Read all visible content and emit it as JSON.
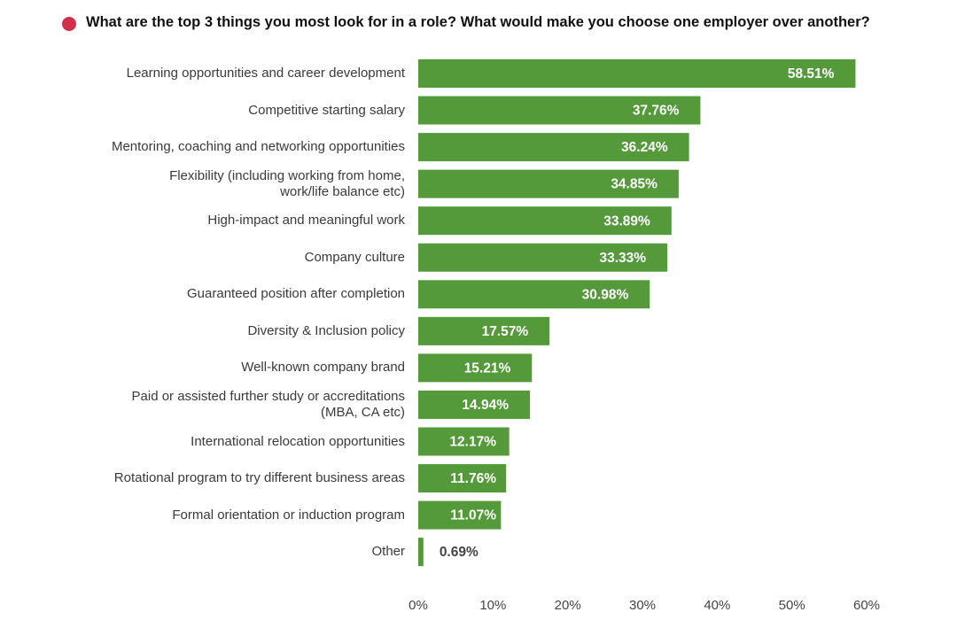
{
  "chart_data": {
    "type": "bar",
    "orientation": "horizontal",
    "title": "What are the top 3 things you most look for in a role? What would make you choose one employer over another?",
    "categories": [
      "Learning opportunities and career development",
      "Competitive starting salary",
      "Mentoring, coaching and networking opportunities",
      "Flexibility (including working from home,\nwork/life balance etc)",
      "High-impact and meaningful work",
      "Company culture",
      "Guaranteed position after completion",
      "Diversity & Inclusion policy",
      "Well-known company brand",
      "Paid or assisted further study or accreditations\n(MBA, CA etc)",
      "International relocation opportunities",
      "Rotational program to try different business areas",
      "Formal orientation or induction program",
      "Other"
    ],
    "values": [
      58.51,
      37.76,
      36.24,
      34.85,
      33.89,
      33.33,
      30.98,
      17.57,
      15.21,
      14.94,
      12.17,
      11.76,
      11.07,
      0.69
    ],
    "value_labels": [
      "58.51%",
      "37.76%",
      "36.24%",
      "34.85%",
      "33.89%",
      "33.33%",
      "30.98%",
      "17.57%",
      "15.21%",
      "14.94%",
      "12.17%",
      "11.76%",
      "11.07%",
      "0.69%"
    ],
    "color": "#54993a",
    "xlim": [
      0,
      60
    ],
    "xticks": [
      {
        "value": 0,
        "label": "0%"
      },
      {
        "value": 10,
        "label": "10%"
      },
      {
        "value": 20,
        "label": "20%"
      },
      {
        "value": 30,
        "label": "30%"
      },
      {
        "value": 40,
        "label": "40%"
      },
      {
        "value": 50,
        "label": "50%"
      },
      {
        "value": 60,
        "label": "60%"
      }
    ],
    "grid": false
  }
}
